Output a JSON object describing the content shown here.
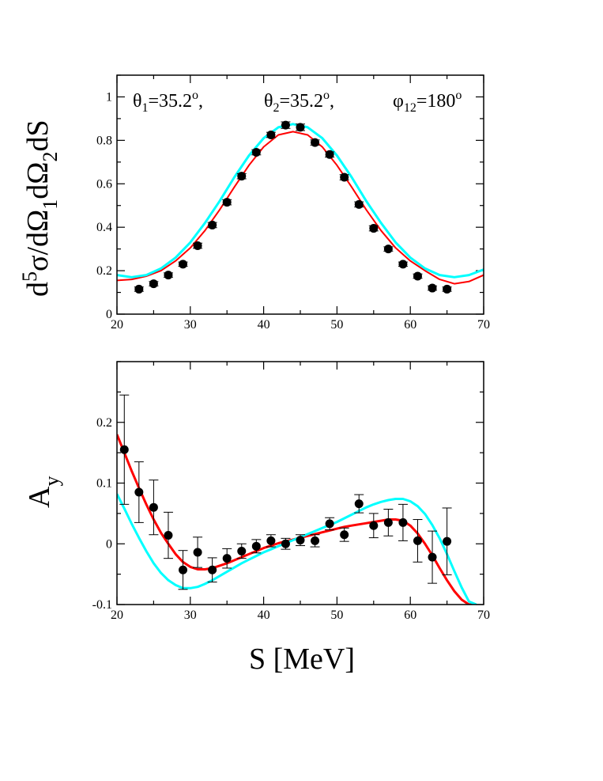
{
  "chart_data": [
    {
      "type": "line",
      "xlim": [
        20,
        70
      ],
      "ylim": [
        0,
        1.1
      ],
      "xticks": [
        20,
        30,
        40,
        50,
        60,
        70
      ],
      "yticks": [
        0,
        0.2,
        0.4,
        0.6,
        0.8,
        1
      ],
      "xtick_labels": [
        "20",
        "30",
        "40",
        "50",
        "60",
        "70"
      ],
      "ytick_labels": [
        "0",
        "0.2",
        "0.4",
        "0.6",
        "0.8",
        "1"
      ],
      "ylabel": {
        "d": "d",
        "sup5": "5",
        "sigma": "σ/dΩ",
        "sub1": "1",
        "mid": "dΩ",
        "sub2": "2",
        "end": "dS"
      },
      "annotation": {
        "theta1": {
          "sym": "θ",
          "sub": "1",
          "val": "=35.2",
          "sup": "o",
          "tail": ","
        },
        "theta2": {
          "sym": "θ",
          "sub": "2",
          "val": "=35.2",
          "sup": "o",
          "tail": ","
        },
        "phi12": {
          "sym": "φ",
          "sub": "12",
          "val": "=180",
          "sup": "o"
        }
      },
      "colors": {
        "red": "#ff0000",
        "cyan": "#00ffff",
        "points": "#000000"
      },
      "points": [
        {
          "x": 23,
          "y": 0.115,
          "err": 0.01
        },
        {
          "x": 25,
          "y": 0.14,
          "err": 0.01
        },
        {
          "x": 27,
          "y": 0.18,
          "err": 0.01
        },
        {
          "x": 29,
          "y": 0.23,
          "err": 0.01
        },
        {
          "x": 31,
          "y": 0.315,
          "err": 0.012
        },
        {
          "x": 33,
          "y": 0.41,
          "err": 0.012
        },
        {
          "x": 35,
          "y": 0.515,
          "err": 0.012
        },
        {
          "x": 37,
          "y": 0.635,
          "err": 0.012
        },
        {
          "x": 39,
          "y": 0.745,
          "err": 0.012
        },
        {
          "x": 41,
          "y": 0.825,
          "err": 0.012
        },
        {
          "x": 43,
          "y": 0.87,
          "err": 0.015
        },
        {
          "x": 45,
          "y": 0.86,
          "err": 0.015
        },
        {
          "x": 47,
          "y": 0.79,
          "err": 0.012
        },
        {
          "x": 49,
          "y": 0.735,
          "err": 0.012
        },
        {
          "x": 51,
          "y": 0.63,
          "err": 0.012
        },
        {
          "x": 53,
          "y": 0.505,
          "err": 0.012
        },
        {
          "x": 55,
          "y": 0.395,
          "err": 0.012
        },
        {
          "x": 57,
          "y": 0.3,
          "err": 0.01
        },
        {
          "x": 59,
          "y": 0.23,
          "err": 0.01
        },
        {
          "x": 61,
          "y": 0.175,
          "err": 0.01
        },
        {
          "x": 63,
          "y": 0.12,
          "err": 0.01
        },
        {
          "x": 65,
          "y": 0.115,
          "err": 0.01
        }
      ],
      "curves": [
        {
          "color": "red",
          "width": 2,
          "x": [
            20,
            22,
            24,
            26,
            28,
            30,
            32,
            34,
            36,
            38,
            40,
            42,
            44,
            46,
            48,
            50,
            52,
            54,
            56,
            58,
            60,
            62,
            64,
            66,
            68,
            70
          ],
          "y": [
            0.155,
            0.16,
            0.175,
            0.2,
            0.245,
            0.305,
            0.385,
            0.48,
            0.585,
            0.685,
            0.77,
            0.825,
            0.84,
            0.825,
            0.77,
            0.685,
            0.585,
            0.48,
            0.385,
            0.305,
            0.245,
            0.2,
            0.16,
            0.14,
            0.15,
            0.18
          ]
        },
        {
          "color": "cyan",
          "width": 3,
          "x": [
            20,
            22,
            24,
            26,
            28,
            30,
            32,
            34,
            36,
            38,
            40,
            42,
            44,
            46,
            48,
            50,
            52,
            54,
            56,
            58,
            60,
            62,
            64,
            66,
            68,
            70
          ],
          "y": [
            0.18,
            0.17,
            0.18,
            0.21,
            0.26,
            0.33,
            0.42,
            0.52,
            0.63,
            0.73,
            0.81,
            0.86,
            0.875,
            0.86,
            0.81,
            0.73,
            0.63,
            0.52,
            0.42,
            0.33,
            0.26,
            0.21,
            0.18,
            0.17,
            0.18,
            0.205
          ]
        }
      ]
    },
    {
      "type": "line",
      "xlim": [
        20,
        70
      ],
      "ylim": [
        -0.1,
        0.3
      ],
      "xticks": [
        20,
        30,
        40,
        50,
        60,
        70
      ],
      "yticks": [
        -0.1,
        0,
        0.1,
        0.2
      ],
      "xtick_labels": [
        "20",
        "30",
        "40",
        "50",
        "60",
        "70"
      ],
      "ytick_labels": [
        "-0.1",
        "0",
        "0.1",
        "0.2"
      ],
      "ylabel": {
        "main": "A",
        "sub": "y"
      },
      "xlabel": "S [MeV]",
      "colors": {
        "red": "#ff0000",
        "cyan": "#00ffff",
        "points": "#000000"
      },
      "points": [
        {
          "x": 21,
          "y": 0.155,
          "err": 0.09
        },
        {
          "x": 23,
          "y": 0.085,
          "err": 0.05
        },
        {
          "x": 25,
          "y": 0.06,
          "err": 0.045
        },
        {
          "x": 27,
          "y": 0.014,
          "err": 0.038
        },
        {
          "x": 29,
          "y": -0.043,
          "err": 0.032
        },
        {
          "x": 31,
          "y": -0.014,
          "err": 0.025
        },
        {
          "x": 33,
          "y": -0.043,
          "err": 0.02
        },
        {
          "x": 35,
          "y": -0.024,
          "err": 0.016
        },
        {
          "x": 37,
          "y": -0.012,
          "err": 0.012
        },
        {
          "x": 39,
          "y": -0.004,
          "err": 0.011
        },
        {
          "x": 41,
          "y": 0.005,
          "err": 0.01
        },
        {
          "x": 43,
          "y": 0.0,
          "err": 0.009
        },
        {
          "x": 45,
          "y": 0.006,
          "err": 0.009
        },
        {
          "x": 47,
          "y": 0.005,
          "err": 0.01
        },
        {
          "x": 49,
          "y": 0.033,
          "err": 0.01
        },
        {
          "x": 51,
          "y": 0.015,
          "err": 0.011
        },
        {
          "x": 53,
          "y": 0.066,
          "err": 0.015
        },
        {
          "x": 55,
          "y": 0.03,
          "err": 0.02
        },
        {
          "x": 57,
          "y": 0.035,
          "err": 0.022
        },
        {
          "x": 59,
          "y": 0.035,
          "err": 0.03
        },
        {
          "x": 61,
          "y": 0.005,
          "err": 0.035
        },
        {
          "x": 63,
          "y": -0.022,
          "err": 0.043
        },
        {
          "x": 65,
          "y": 0.004,
          "err": 0.055
        }
      ],
      "curves": [
        {
          "color": "red",
          "width": 3,
          "x": [
            20,
            21,
            22,
            23,
            24,
            25,
            26,
            27,
            28,
            29,
            30,
            31,
            32,
            33,
            34,
            35,
            36,
            37,
            38,
            39,
            40,
            41,
            42,
            43,
            44,
            45,
            46,
            47,
            48,
            49,
            50,
            51,
            52,
            53,
            54,
            55,
            56,
            57,
            58,
            59,
            60,
            61,
            62,
            63,
            64,
            65,
            66,
            67,
            68,
            69
          ],
          "y": [
            0.18,
            0.15,
            0.12,
            0.092,
            0.065,
            0.04,
            0.018,
            0.0,
            -0.017,
            -0.03,
            -0.038,
            -0.042,
            -0.042,
            -0.04,
            -0.036,
            -0.032,
            -0.027,
            -0.022,
            -0.017,
            -0.012,
            -0.007,
            -0.003,
            0.001,
            0.004,
            0.007,
            0.01,
            0.013,
            0.016,
            0.019,
            0.022,
            0.025,
            0.028,
            0.03,
            0.032,
            0.034,
            0.036,
            0.038,
            0.04,
            0.04,
            0.038,
            0.03,
            0.017,
            0.0,
            -0.019,
            -0.04,
            -0.06,
            -0.078,
            -0.092,
            -0.1,
            -0.1
          ]
        },
        {
          "color": "cyan",
          "width": 3,
          "x": [
            20,
            21,
            22,
            23,
            24,
            25,
            26,
            27,
            28,
            29,
            30,
            31,
            32,
            33,
            34,
            35,
            36,
            37,
            38,
            39,
            40,
            41,
            42,
            43,
            44,
            45,
            46,
            47,
            48,
            49,
            50,
            51,
            52,
            53,
            54,
            55,
            56,
            57,
            58,
            59,
            60,
            61,
            62,
            63,
            64,
            65,
            66,
            67,
            68,
            69
          ],
          "y": [
            0.082,
            0.058,
            0.033,
            0.01,
            -0.012,
            -0.032,
            -0.048,
            -0.06,
            -0.068,
            -0.073,
            -0.073,
            -0.071,
            -0.066,
            -0.06,
            -0.053,
            -0.046,
            -0.039,
            -0.032,
            -0.026,
            -0.02,
            -0.014,
            -0.009,
            -0.004,
            0.001,
            0.006,
            0.011,
            0.016,
            0.021,
            0.026,
            0.031,
            0.036,
            0.042,
            0.048,
            0.054,
            0.06,
            0.065,
            0.069,
            0.072,
            0.074,
            0.074,
            0.07,
            0.062,
            0.049,
            0.031,
            0.009,
            -0.017,
            -0.045,
            -0.072,
            -0.095,
            -0.1
          ]
        }
      ]
    }
  ]
}
